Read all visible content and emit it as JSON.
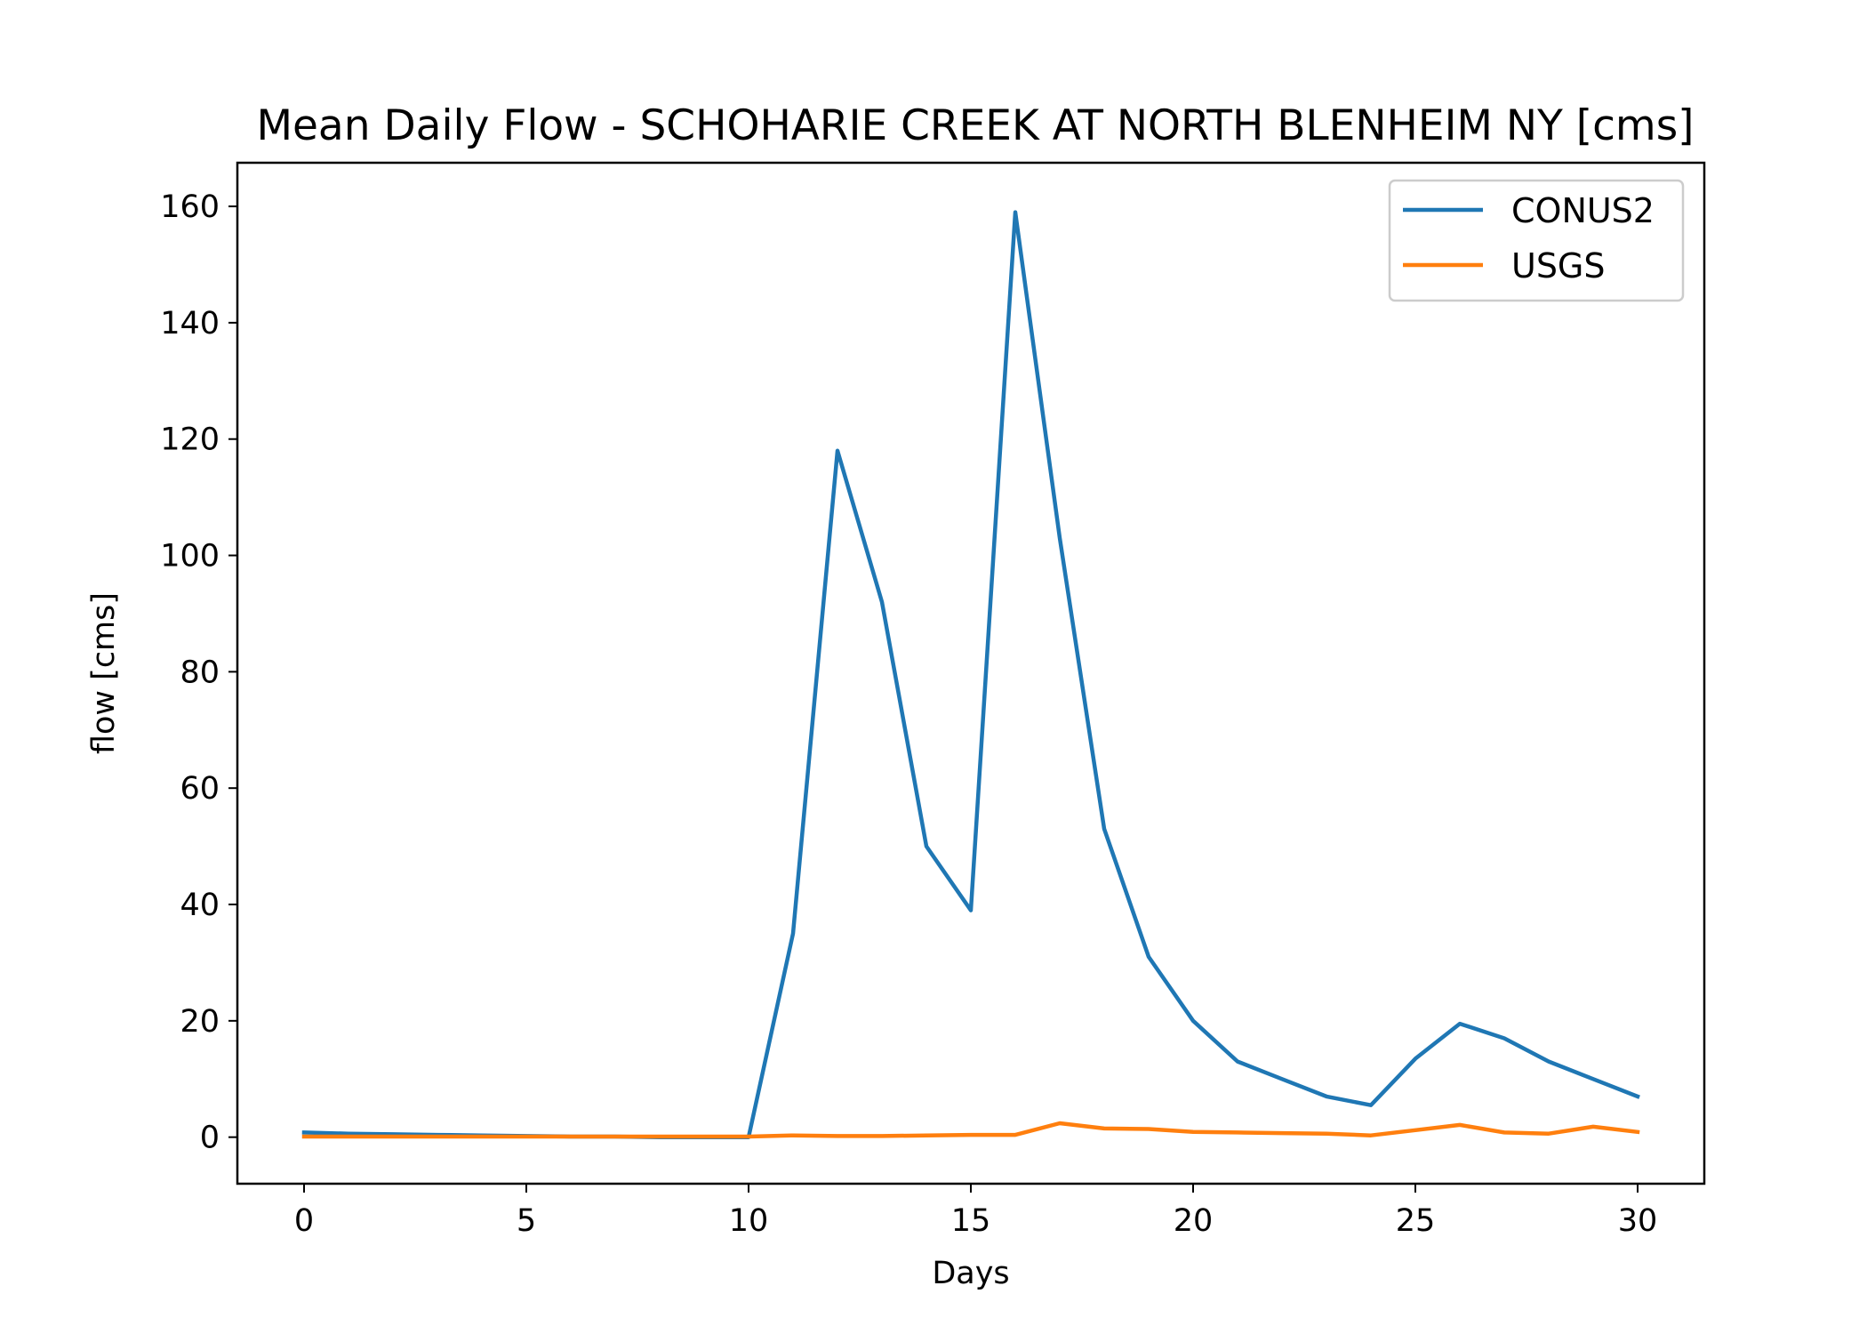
{
  "chart_data": {
    "type": "line",
    "title": "Mean Daily Flow - SCHOHARIE CREEK AT NORTH BLENHEIM NY [cms]",
    "xlabel": "Days",
    "ylabel": "flow [cms]",
    "xlim": [
      -1.5,
      31.5
    ],
    "ylim": [
      -8,
      167.5
    ],
    "xticks": [
      0,
      5,
      10,
      15,
      20,
      25,
      30
    ],
    "yticks": [
      0,
      20,
      40,
      60,
      80,
      100,
      120,
      140,
      160
    ],
    "legend_position": "top-right",
    "grid": false,
    "x": [
      0,
      1,
      2,
      3,
      4,
      5,
      6,
      7,
      8,
      9,
      10,
      11,
      12,
      13,
      14,
      15,
      16,
      17,
      18,
      19,
      20,
      21,
      22,
      23,
      24,
      25,
      26,
      27,
      28,
      29,
      30
    ],
    "series": [
      {
        "name": "CONUS2",
        "color": "#1f77b4",
        "values": [
          0.8,
          0.6,
          0.5,
          0.4,
          0.3,
          0.2,
          0.1,
          0.1,
          0,
          0,
          0,
          35,
          118,
          92,
          50,
          39,
          159,
          103,
          53,
          31,
          20,
          13,
          10,
          7,
          5.5,
          13.5,
          19.5,
          17,
          13,
          10,
          7
        ]
      },
      {
        "name": "USGS",
        "color": "#ff7f0e",
        "values": [
          0.1,
          0.1,
          0.1,
          0.1,
          0.1,
          0.1,
          0.1,
          0.1,
          0.1,
          0.1,
          0.1,
          0.3,
          0.2,
          0.2,
          0.3,
          0.4,
          0.4,
          2.4,
          1.5,
          1.4,
          0.9,
          0.8,
          0.7,
          0.6,
          0.3,
          1.2,
          2.1,
          0.8,
          0.6,
          1.8,
          0.9
        ]
      }
    ]
  }
}
